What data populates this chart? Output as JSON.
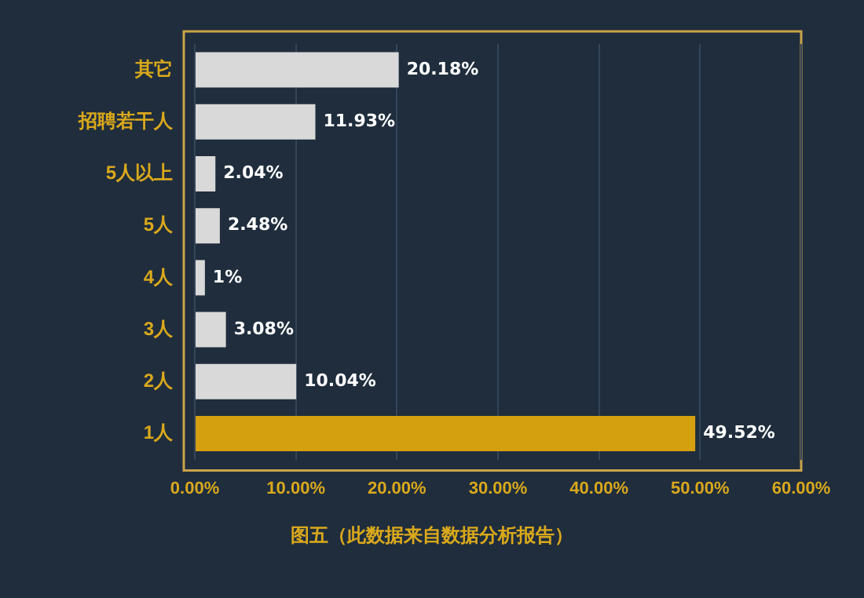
{
  "chart_data": {
    "type": "bar",
    "orientation": "horizontal",
    "categories": [
      "其它",
      "招聘若干人",
      "5人以上",
      "5人",
      "4人",
      "3人",
      "2人",
      "1人"
    ],
    "values": [
      20.18,
      11.93,
      2.04,
      2.48,
      1,
      3.08,
      10.04,
      49.52
    ],
    "colors": [
      "#d9d9d9",
      "#d9d9d9",
      "#d9d9d9",
      "#d9d9d9",
      "#d9d9d9",
      "#d9d9d9",
      "#d9d9d9",
      "#d4a010"
    ],
    "value_labels": [
      "20.18%",
      "11.93%",
      "2.04%",
      "2.48%",
      "1%",
      "3.08%",
      "10.04%",
      "49.52%"
    ],
    "xlim": [
      0,
      60
    ],
    "xticks": [
      {
        "value": 0,
        "label": "0.00%"
      },
      {
        "value": 10,
        "label": "10.00%"
      },
      {
        "value": 20,
        "label": "20.00%"
      },
      {
        "value": 30,
        "label": "30.00%"
      },
      {
        "value": 40,
        "label": "40.00%"
      },
      {
        "value": 50,
        "label": "50.00%"
      },
      {
        "value": 60,
        "label": "60.00%"
      }
    ],
    "grid": "x",
    "legend": false,
    "annotations": [
      "图五（此数据来自数据分析报告）"
    ]
  }
}
